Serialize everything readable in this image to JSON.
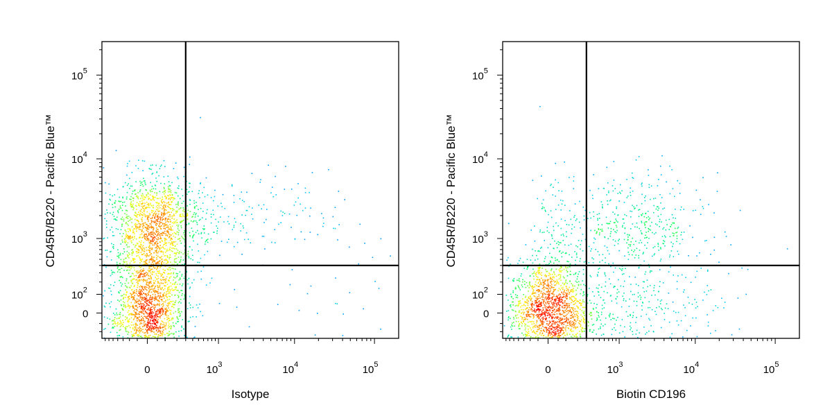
{
  "chart_data": [
    {
      "type": "scatter",
      "style": "flow cytometry pseudocolor density dot plot",
      "xlabel": "Isotype",
      "ylabel": "CD45R/B220 - Pacific Blue™",
      "x_scale": "biexponential",
      "y_scale": "biexponential",
      "x_ticks": [
        {
          "value": 0,
          "base": "0",
          "exp": ""
        },
        {
          "value": 1000,
          "base": "10",
          "exp": "3"
        },
        {
          "value": 10000,
          "base": "10",
          "exp": "4"
        },
        {
          "value": 100000,
          "base": "10",
          "exp": "5"
        }
      ],
      "y_ticks": [
        {
          "value": 0,
          "base": "0",
          "exp": ""
        },
        {
          "value": 100,
          "base": "10",
          "exp": "2"
        },
        {
          "value": 1000,
          "base": "10",
          "exp": "3"
        },
        {
          "value": 10000,
          "base": "10",
          "exp": "4"
        },
        {
          "value": 100000,
          "base": "10",
          "exp": "5"
        }
      ],
      "xlim": [
        -400,
        200000
      ],
      "ylim": [
        -150,
        250000
      ],
      "quadrant_gate": {
        "x": 300,
        "y": 400
      },
      "populations": [
        {
          "name": "",
          "x_center": 0,
          "y_center": 0,
          "x_spread_decades": 0.25,
          "y_spread_decades": 0.35,
          "count": 1400
        },
        {
          "name": "",
          "x_center": 30,
          "y_center": 1500,
          "x_spread_decades": 0.3,
          "y_spread_decades": 0.3,
          "count": 1200
        },
        {
          "name": "",
          "x_center": 30,
          "y_center": 250,
          "x_spread_decades": 0.15,
          "y_spread_decades": 0.5,
          "count": 420
        },
        {
          "name": "",
          "x_center": 1200,
          "y_center": 2000,
          "x_spread_decades": 0.9,
          "y_spread_decades": 0.25,
          "count": 200
        },
        {
          "name": "",
          "x_center": 15000,
          "y_center": 10,
          "x_spread_decades": 0.9,
          "y_spread_decades": 0.5,
          "count": 40
        }
      ],
      "density_colors": [
        "#0000ff",
        "#00c8ff",
        "#00ff60",
        "#ffff00",
        "#ff8000",
        "#ff0000"
      ]
    },
    {
      "type": "scatter",
      "style": "flow cytometry pseudocolor density dot plot",
      "xlabel": "Biotin CD196",
      "ylabel": "CD45R/B220 - Pacific Blue™",
      "x_scale": "biexponential",
      "y_scale": "biexponential",
      "x_ticks": [
        {
          "value": 0,
          "base": "0",
          "exp": ""
        },
        {
          "value": 1000,
          "base": "10",
          "exp": "3"
        },
        {
          "value": 10000,
          "base": "10",
          "exp": "4"
        },
        {
          "value": 100000,
          "base": "10",
          "exp": "5"
        }
      ],
      "y_ticks": [
        {
          "value": 0,
          "base": "0",
          "exp": ""
        },
        {
          "value": 100,
          "base": "10",
          "exp": "2"
        },
        {
          "value": 1000,
          "base": "10",
          "exp": "3"
        },
        {
          "value": 10000,
          "base": "10",
          "exp": "4"
        },
        {
          "value": 100000,
          "base": "10",
          "exp": "5"
        }
      ],
      "xlim": [
        -400,
        200000
      ],
      "ylim": [
        -150,
        250000
      ],
      "quadrant_gate": {
        "x": 300,
        "y": 400
      },
      "populations": [
        {
          "name": "",
          "x_center": 0,
          "y_center": 0,
          "x_spread_decades": 0.25,
          "y_spread_decades": 0.3,
          "count": 1500
        },
        {
          "name": "",
          "x_center": 1500,
          "y_center": 1500,
          "x_spread_decades": 0.45,
          "y_spread_decades": 0.3,
          "count": 420
        },
        {
          "name": "",
          "x_center": 1500,
          "y_center": 20,
          "x_spread_decades": 0.55,
          "y_spread_decades": 0.35,
          "count": 420
        },
        {
          "name": "",
          "x_center": 30,
          "y_center": 500,
          "x_spread_decades": 0.15,
          "y_spread_decades": 0.6,
          "count": 180
        }
      ],
      "density_colors": [
        "#0000ff",
        "#00c8ff",
        "#00ff60",
        "#ffff00",
        "#ff8000",
        "#ff0000"
      ]
    }
  ]
}
